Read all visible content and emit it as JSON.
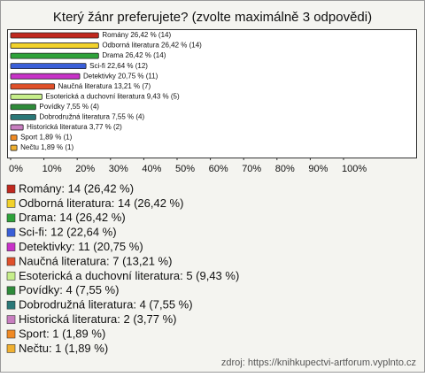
{
  "chart_data": {
    "type": "bar",
    "orientation": "horizontal",
    "title": "Který žánr preferujete? (zvolte maximálně 3 odpovědi)",
    "categories": [
      "Romány",
      "Odborná literatura",
      "Drama",
      "Sci-fi",
      "Detektivky",
      "Naučná literatura",
      "Esoterická a duchovní literatura",
      "Povídky",
      "Dobrodružná literatura",
      "Historická literatura",
      "Sport",
      "Nečtu"
    ],
    "values": [
      26.42,
      26.42,
      26.42,
      22.64,
      20.75,
      13.21,
      9.43,
      7.55,
      7.55,
      3.77,
      1.89,
      1.89
    ],
    "value_labels": [
      "Romány 26,42 % (14)",
      "Odborná literatura 26,42 % (14)",
      "Drama 26,42 % (14)",
      "Sci-fi 22,64 % (12)",
      "Detektivky 20,75 % (11)",
      "Naučná literatura 13,21 % (7)",
      "Esoterická a duchovní literatura 9,43 % (5)",
      "Povídky 7,55 % (4)",
      "Dobrodružná literatura 7,55 % (4)",
      "Historická literatura 3,77 % (2)",
      "Sport 1,89 % (1)",
      "Nečtu 1,89 % (1)"
    ],
    "colors": [
      "#c0281e",
      "#f2d22a",
      "#2ea23a",
      "#3a5fd8",
      "#c832c8",
      "#e0502a",
      "#c6ee8a",
      "#2e8b3a",
      "#2a7878",
      "#c87ec0",
      "#f08a24",
      "#f0b030"
    ],
    "legend": [
      "Romány: 14 (26,42 %)",
      "Odborná literatura: 14 (26,42 %)",
      "Drama: 14 (26,42 %)",
      "Sci-fi: 12 (22,64 %)",
      "Detektivky: 11 (20,75 %)",
      "Naučná literatura: 7 (13,21 %)",
      "Esoterická a duchovní literatura: 5 (9,43 %)",
      "Povídky: 4 (7,55 %)",
      "Dobrodružná literatura: 4 (7,55 %)",
      "Historická literatura: 2 (3,77 %)",
      "Sport: 1 (1,89 %)",
      "Nečtu: 1 (1,89 %)"
    ],
    "xlim": [
      0,
      100
    ],
    "xticks": [
      {
        "value": 0,
        "label": "0%"
      },
      {
        "value": 10,
        "label": "10%"
      },
      {
        "value": 20,
        "label": "20%"
      },
      {
        "value": 30,
        "label": "30%"
      },
      {
        "value": 40,
        "label": "40%"
      },
      {
        "value": 50,
        "label": "50%"
      },
      {
        "value": 60,
        "label": "60%"
      },
      {
        "value": 70,
        "label": "70%"
      },
      {
        "value": 80,
        "label": "80%"
      },
      {
        "value": 90,
        "label": "90%"
      },
      {
        "value": 100,
        "label": "100%"
      }
    ],
    "source": "zdroj: https://knihkupectvi-artforum.vyplnto.cz"
  }
}
